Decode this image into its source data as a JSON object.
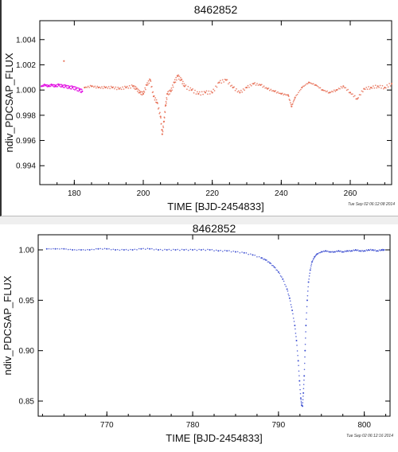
{
  "chart_data": [
    {
      "type": "scatter",
      "title": "8462852",
      "xlabel": "TIME [BJD-2454833]",
      "ylabel": "ndiv_PDCSAP_FLUX",
      "xlim": [
        170,
        272
      ],
      "ylim": [
        0.9925,
        1.0055
      ],
      "xticks": [
        180,
        200,
        220,
        240,
        260
      ],
      "yticks": [
        0.994,
        0.996,
        0.998,
        1.0,
        1.002,
        1.004
      ],
      "ytick_labels": [
        "0.994",
        "0.996",
        "0.998",
        "1.000",
        "1.002",
        "1.004"
      ],
      "timestamp": "Tue Sep 02 06:12:08 2014",
      "series": [
        {
          "color": "#e000e0",
          "x": [
            170.5,
            171.5,
            172.5,
            173.5,
            174.5,
            175.5,
            176.5,
            177.5,
            178.5,
            179.5,
            180.5,
            181.5,
            182.3
          ],
          "y": [
            1.0003,
            1.0004,
            1.0003,
            1.0004,
            1.0003,
            1.0004,
            1.0003,
            1.0003,
            1.0002,
            1.0002,
            1.0001,
            1.0,
            0.9999
          ]
        },
        {
          "color": "#e8735a",
          "x": [
            183,
            185,
            187,
            189,
            191,
            193,
            195,
            197,
            198,
            199,
            200,
            201,
            202,
            203,
            204,
            205,
            205.5,
            206,
            206.5,
            207,
            208,
            209,
            210,
            211,
            212,
            214,
            216,
            218,
            220,
            222,
            224,
            226,
            228,
            230,
            232,
            234,
            236,
            238,
            240,
            242,
            243,
            244,
            246,
            248,
            250,
            252,
            254,
            256,
            258,
            260,
            262,
            264,
            266,
            268,
            270,
            272
          ],
          "y": [
            1.0002,
            1.0003,
            1.0002,
            1.0002,
            1.0002,
            1.0001,
            1.0002,
            1.0003,
            1.0001,
            0.9998,
            0.9997,
            1.0004,
            1.0008,
            0.9995,
            0.999,
            0.9979,
            0.9965,
            0.9975,
            0.9988,
            0.9997,
            0.9999,
            1.0006,
            1.0011,
            1.0008,
            1.0003,
            1.0,
            0.9997,
            0.9998,
            0.9998,
            1.0006,
            1.0008,
            1.0002,
            0.9998,
            1.0002,
            1.0005,
            1.0004,
            1.0001,
            0.9999,
            0.9997,
            0.9996,
            0.9987,
            0.9994,
            1.0002,
            1.0006,
            1.0004,
            1.0,
            0.9998,
            1.0,
            1.0003,
            0.9998,
            0.9993,
            1.0001,
            1.0002,
            1.0003,
            1.0002,
            1.0005
          ]
        }
      ],
      "annotations": [
        {
          "x": 177,
          "y": 1.0023,
          "color": "#e8735a"
        }
      ]
    },
    {
      "type": "scatter",
      "title": "8462852",
      "xlabel": "TIME [BJD-2454833]",
      "ylabel": "ndiv_PDCSAP_FLUX",
      "xlim": [
        762,
        803
      ],
      "ylim": [
        0.835,
        1.015
      ],
      "xticks": [
        770,
        780,
        790,
        800
      ],
      "yticks": [
        0.85,
        0.9,
        0.95,
        1.0
      ],
      "ytick_labels": [
        "0.85",
        "0.90",
        "0.95",
        "1.00"
      ],
      "timestamp": "Tue Sep 02 06:12:16 2014",
      "series": [
        {
          "color": "#3f51d1",
          "x": [
            763.0,
            764.0,
            765.0,
            766.0,
            767.0,
            768.0,
            769.0,
            770.0,
            771.0,
            772.0,
            773.0,
            774.0,
            775.0,
            776.0,
            777.0,
            778.0,
            779.0,
            780.0,
            781.0,
            782.0,
            783.0,
            784.0,
            785.0,
            786.0,
            787.0,
            788.0,
            788.5,
            789.0,
            789.5,
            790.0,
            790.5,
            791.0,
            791.3,
            791.6,
            791.9,
            792.1,
            792.3,
            792.45,
            792.6,
            792.7,
            792.8,
            792.9,
            793.0,
            793.1,
            793.2,
            793.35,
            793.5,
            793.7,
            793.9,
            794.2,
            794.5,
            795.0,
            795.5,
            796.0,
            796.5,
            797.0,
            797.5,
            798.0,
            798.5,
            799.0,
            799.5,
            800.0,
            800.5,
            801.0,
            801.5,
            802.0,
            802.3
          ],
          "y": [
            1.001,
            1.001,
            1.001,
            1.0,
            1.0,
            1.0,
            1.001,
            1.001,
            1.0,
            1.0,
            1.0,
            1.001,
            1.001,
            1.0,
            1.0,
            1.0,
            1.0,
            1.0,
            1.0,
            1.0,
            0.999,
            0.999,
            0.998,
            0.997,
            0.995,
            0.992,
            0.99,
            0.987,
            0.983,
            0.978,
            0.971,
            0.961,
            0.952,
            0.94,
            0.925,
            0.91,
            0.89,
            0.87,
            0.853,
            0.846,
            0.845,
            0.858,
            0.875,
            0.9,
            0.925,
            0.95,
            0.968,
            0.98,
            0.988,
            0.993,
            0.996,
            0.998,
            0.999,
            0.998,
            0.998,
            0.999,
            0.998,
            0.999,
            0.999,
            1.0,
            0.999,
            0.999,
            1.0,
            1.0,
            0.999,
            1.0,
            1.0
          ]
        }
      ]
    }
  ]
}
